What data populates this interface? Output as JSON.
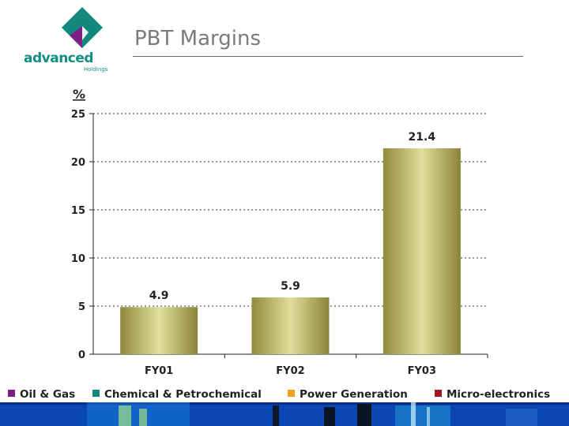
{
  "header": {
    "title": "PBT Margins",
    "logo_text": "advanced",
    "logo_subtext": "Holdings"
  },
  "chart_data": {
    "type": "bar",
    "categories": [
      "FY01",
      "FY02",
      "FY03"
    ],
    "values": [
      4.9,
      5.9,
      21.4
    ],
    "data_labels": [
      "4.9",
      "5.9",
      "21.4"
    ],
    "ylabel": "%",
    "ylim": [
      0,
      25
    ],
    "yticks": [
      0,
      5,
      10,
      15,
      20,
      25
    ],
    "grid": true,
    "bar_color": "#e2de9c"
  },
  "legend": {
    "items": [
      {
        "label": "Oil & Gas",
        "color": "#7b1f86"
      },
      {
        "label": "Chemical & Petrochemical",
        "color": "#11877e"
      },
      {
        "label": "Power Generation",
        "color": "#f0a020"
      },
      {
        "label": "Micro-electronics",
        "color": "#a01a1f"
      }
    ]
  },
  "colors": {
    "title": "#7a7a7a",
    "brand": "#0e8f84",
    "footer": "#0a3a9c"
  }
}
